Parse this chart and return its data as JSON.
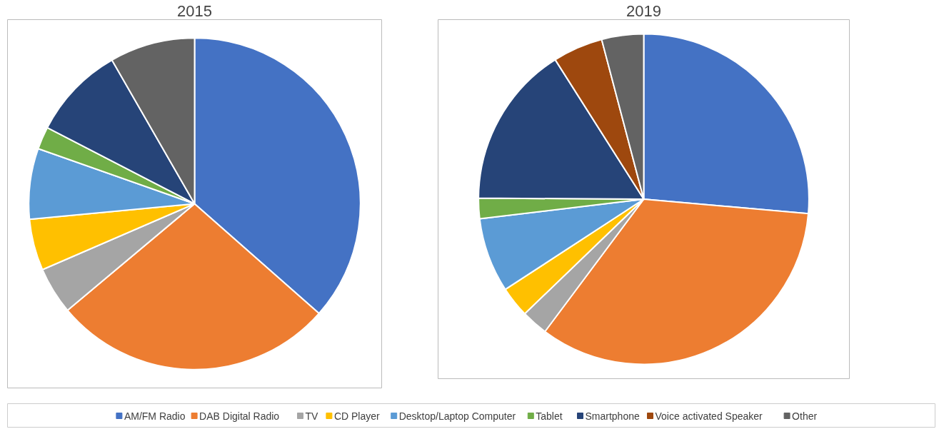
{
  "chart_data": {
    "type": "pie",
    "categories": [
      "AM/FM Radio",
      "DAB Digital Radio",
      "TV",
      "CD Player",
      "Desktop/Laptop Computer",
      "Tablet",
      "Smartphone",
      "Voice activated Speaker",
      "Other"
    ],
    "colors": [
      "#4472c4",
      "#ed7d31",
      "#a5a5a5",
      "#ffc000",
      "#5b9bd5",
      "#70ad47",
      "#264478",
      "#9e480e",
      "#636363"
    ],
    "series": [
      {
        "name": "2015",
        "values": [
          36.5,
          27.4,
          4.6,
          5.0,
          6.9,
          2.2,
          9.1,
          null,
          8.3
        ]
      },
      {
        "name": "2019",
        "values": [
          26.4,
          33.8,
          2.6,
          3.0,
          7.3,
          2.0,
          15.9,
          4.9,
          4.1
        ]
      }
    ],
    "legend": "bottom"
  }
}
